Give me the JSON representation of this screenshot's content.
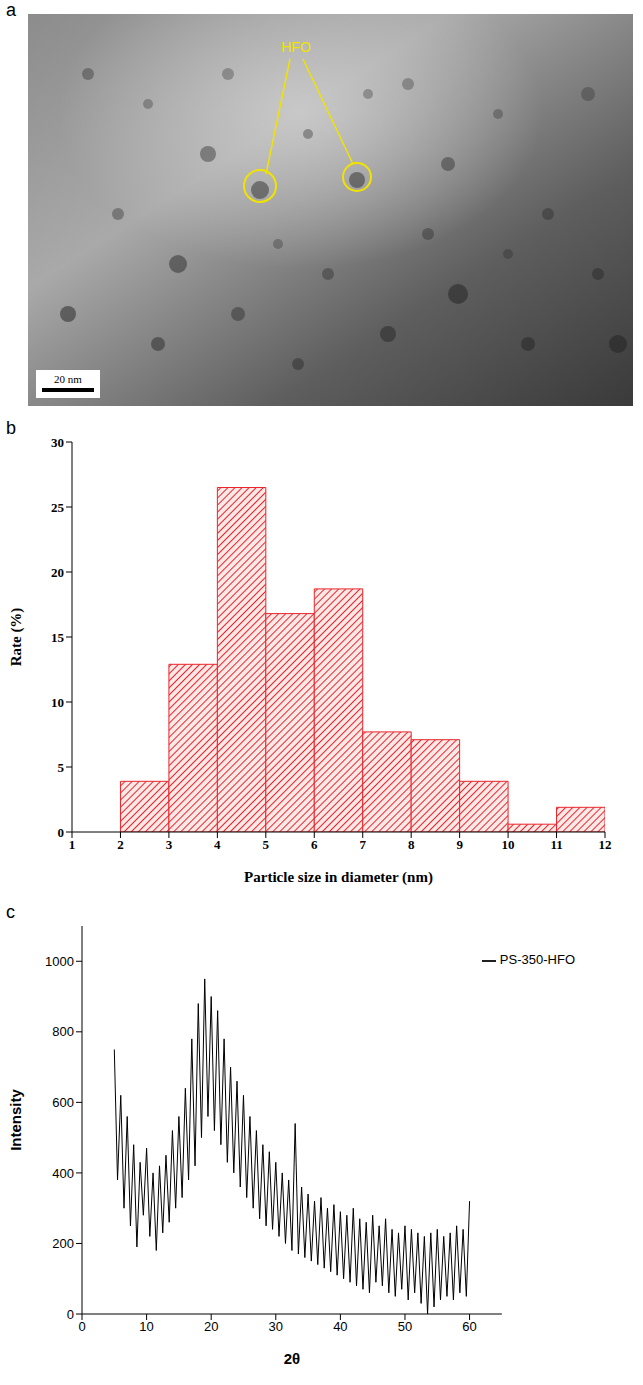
{
  "image": {
    "panel_label": "a",
    "annotation": "HFO",
    "scale_bar": "20 nm"
  },
  "chart_data": [
    {
      "type": "histogram",
      "panel_label": "b",
      "x_label": "Particle size in diameter (nm)",
      "y_label": "Rate (%)",
      "bins": [
        2,
        3,
        4,
        5,
        6,
        7,
        8,
        9,
        10,
        11,
        12
      ],
      "values": [
        3.9,
        12.9,
        26.5,
        16.8,
        18.7,
        7.7,
        7.1,
        3.9,
        0.6,
        1.9
      ],
      "color": "#e8262b",
      "xlim": [
        1,
        12
      ],
      "xticks": [
        1,
        2,
        3,
        4,
        5,
        6,
        7,
        8,
        9,
        10,
        11,
        12
      ],
      "ylim": [
        0,
        30
      ],
      "yticks": [
        0,
        5,
        10,
        15,
        20,
        25,
        30
      ]
    },
    {
      "type": "line",
      "panel_label": "c",
      "x_label": "2θ",
      "y_label": "Intensity",
      "x": [
        5,
        5.5,
        6,
        6.5,
        7,
        7.5,
        8,
        8.5,
        9,
        9.5,
        10,
        10.5,
        11,
        11.5,
        12,
        12.5,
        13,
        13.5,
        14,
        14.5,
        15,
        15.5,
        16,
        16.5,
        17,
        17.5,
        18,
        18.5,
        19,
        19.5,
        20,
        20.5,
        21,
        21.5,
        22,
        22.5,
        23,
        23.5,
        24,
        24.5,
        25,
        25.5,
        26,
        26.5,
        27,
        27.5,
        28,
        28.5,
        29,
        29.5,
        30,
        30.5,
        31,
        31.5,
        32,
        32.5,
        33,
        33.5,
        34,
        34.5,
        35,
        35.5,
        36,
        36.5,
        37,
        37.5,
        38,
        38.5,
        39,
        39.5,
        40,
        40.5,
        41,
        41.5,
        42,
        42.5,
        43,
        43.5,
        44,
        44.5,
        45,
        45.5,
        46,
        46.5,
        47,
        47.5,
        48,
        48.5,
        49,
        49.5,
        50,
        50.5,
        51,
        51.5,
        52,
        52.5,
        53,
        53.5,
        54,
        54.5,
        55,
        55.5,
        56,
        56.5,
        57,
        57.5,
        58,
        58.5,
        59,
        59.5,
        60
      ],
      "series": [
        {
          "name": "PS-350-HFO",
          "color": "#000000",
          "values": [
            750,
            380,
            620,
            300,
            560,
            250,
            480,
            190,
            430,
            280,
            470,
            220,
            400,
            180,
            420,
            230,
            450,
            260,
            520,
            300,
            560,
            330,
            640,
            380,
            780,
            420,
            880,
            500,
            950,
            560,
            900,
            520,
            860,
            480,
            780,
            430,
            700,
            400,
            660,
            360,
            620,
            330,
            560,
            300,
            520,
            270,
            480,
            250,
            460,
            240,
            430,
            220,
            400,
            200,
            380,
            180,
            540,
            170,
            360,
            160,
            340,
            150,
            320,
            140,
            330,
            130,
            300,
            120,
            310,
            110,
            290,
            100,
            280,
            90,
            300,
            80,
            270,
            70,
            260,
            60,
            280,
            90,
            250,
            80,
            270,
            60,
            240,
            50,
            230,
            70,
            250,
            40,
            240,
            60,
            230,
            30,
            220,
            0,
            230,
            20,
            240,
            40,
            220,
            50,
            230,
            40,
            250,
            60,
            240,
            50,
            320
          ]
        }
      ],
      "xlim": [
        0,
        65
      ],
      "xticks": [
        0,
        10,
        20,
        30,
        40,
        50,
        60
      ],
      "ylim": [
        0,
        1100
      ],
      "yticks": [
        0,
        200,
        400,
        600,
        800,
        1000
      ],
      "legend": "upper right"
    }
  ]
}
